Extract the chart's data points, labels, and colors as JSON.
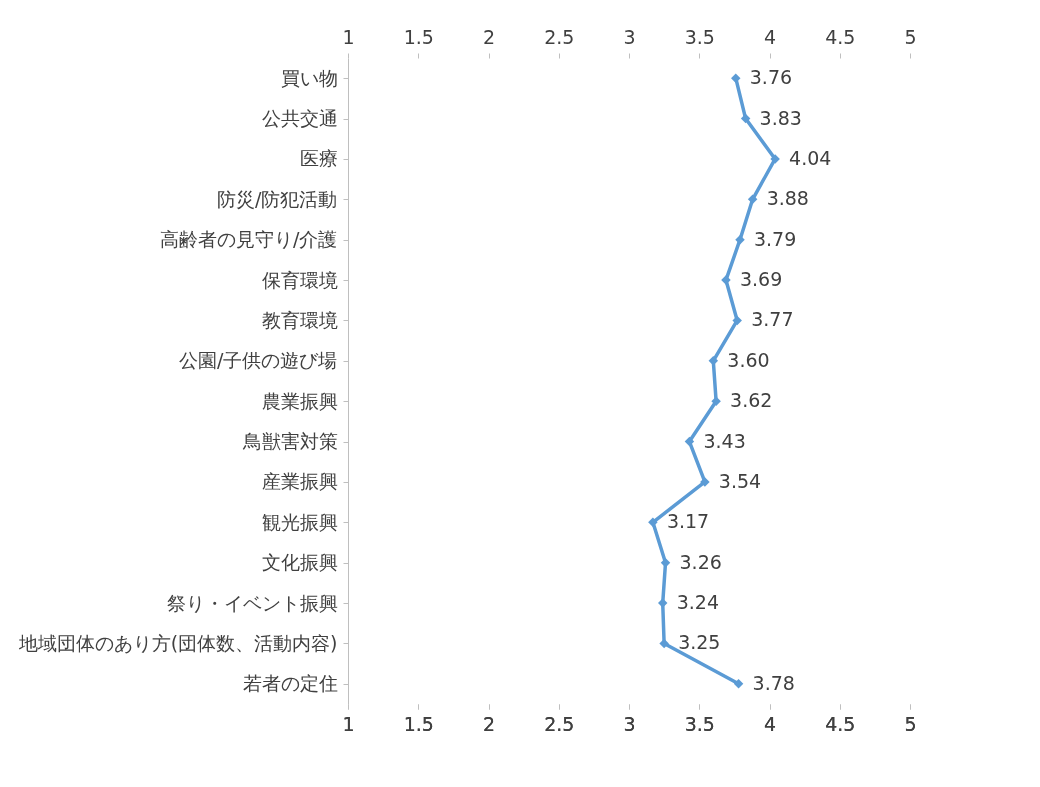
{
  "chart_data": {
    "type": "line",
    "orientation": "horizontal",
    "categories": [
      "買い物",
      "公共交通",
      "医療",
      "防災/防犯活動",
      "高齢者の見守り/介護",
      "保育環境",
      "教育環境",
      "公園/子供の遊び場",
      "農業振興",
      "鳥獣害対策",
      "産業振興",
      "観光振興",
      "文化振興",
      "祭り・イベント振興",
      "地域団体のあり方(団体数、活動内容)",
      "若者の定住"
    ],
    "series": [
      {
        "color": "#5b9bd5",
        "values": [
          3.76,
          3.83,
          4.04,
          3.88,
          3.79,
          3.69,
          3.77,
          3.6,
          3.62,
          3.43,
          3.54,
          3.17,
          3.26,
          3.24,
          3.25,
          3.78
        ],
        "value_labels": [
          "3.76",
          "3.83",
          "4.04",
          "3.88",
          "3.79",
          "3.69",
          "3.77",
          "3.60",
          "3.62",
          "3.43",
          "3.54",
          "3.17",
          "3.26",
          "3.24",
          "3.25",
          "3.78"
        ]
      }
    ],
    "xlim": [
      1,
      5
    ],
    "xticks": [
      1,
      1.5,
      2,
      2.5,
      3,
      3.5,
      4,
      4.5,
      5
    ],
    "x2lim": [
      1,
      5
    ],
    "x2ticks": [
      1,
      1.5,
      2,
      2.5,
      3,
      3.5,
      4,
      4.5,
      5
    ],
    "marker": "diamond",
    "line_style": "solid",
    "grid": false,
    "legend": false
  }
}
